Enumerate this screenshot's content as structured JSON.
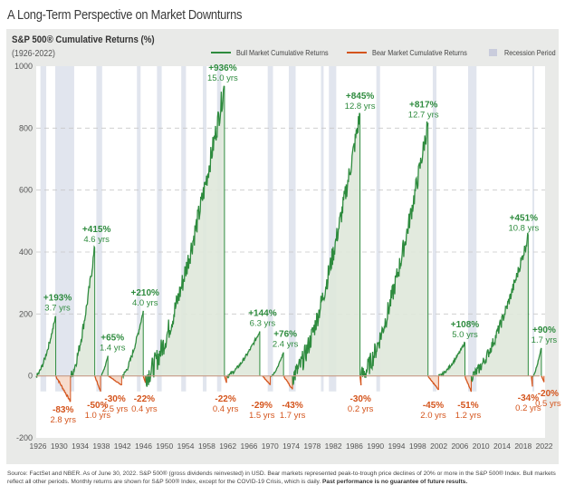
{
  "page_title": "A Long-Term Perspective on Market Downturns",
  "footer": {
    "text": "Source: FactSet and NBER.  As of June 30, 2022. S&P 500® (gross dividends reinvested) in USD. Bear markets represented peak-to-trough price declines of 20% or more in the S&P 500® Index. Bull markets reflect all other periods. Monthly returns are shown for S&P 500® Index, except for the COVID-19 Crisis, which is daily.",
    "bold": "Past performance is no guarantee of future results."
  },
  "colors": {
    "bull": "#2e8b3e",
    "bull_fill": "#dfe8da",
    "bear": "#d4541c",
    "bear_fill": "#f7dccd",
    "recession": "#e1e5ee",
    "panel": "#e9eae8"
  },
  "chart_data": {
    "type": "area",
    "title": "S&P 500® Cumulative Returns (%)",
    "subtitle": "(1926-2022)",
    "xlabel": "",
    "ylabel": "",
    "xlim": [
      1926,
      2022.5
    ],
    "ylim": [
      -200,
      1000
    ],
    "yticks": [
      "1000",
      "800",
      "600",
      "400",
      "200",
      "0",
      "-200"
    ],
    "ytick_values": [
      1000,
      800,
      600,
      400,
      200,
      0,
      -200
    ],
    "xticks": [
      "1926",
      "1930",
      "1934",
      "1938",
      "1942",
      "1946",
      "1950",
      "1954",
      "1958",
      "1962",
      "1966",
      "1970",
      "1974",
      "1978",
      "1982",
      "1986",
      "1990",
      "1994",
      "1998",
      "2002",
      "2006",
      "2010",
      "2014",
      "2018",
      "2022"
    ],
    "grid": "horizontal dashed",
    "legend": {
      "position": "top-right",
      "entries": [
        "Bull Market Cumulative Returns",
        "Bear Market Cumulative Returns",
        "Recession Period"
      ]
    },
    "recessions": [
      [
        1926.8,
        1927.9
      ],
      [
        1929.6,
        1933.2
      ],
      [
        1937.4,
        1938.5
      ],
      [
        1945.1,
        1945.8
      ],
      [
        1948.9,
        1949.8
      ],
      [
        1953.5,
        1954.4
      ],
      [
        1957.6,
        1958.3
      ],
      [
        1960.3,
        1961.1
      ],
      [
        1969.9,
        1970.9
      ],
      [
        1973.9,
        1975.2
      ],
      [
        1980.0,
        1980.5
      ],
      [
        1981.5,
        1982.9
      ],
      [
        1990.5,
        1991.2
      ],
      [
        2001.2,
        2001.9
      ],
      [
        2007.9,
        2009.5
      ],
      [
        2020.1,
        2020.4
      ]
    ],
    "bull_markets": [
      {
        "start": 1926.0,
        "end": 1929.7,
        "return": 193,
        "label": "+193%",
        "years": "3.7 yrs"
      },
      {
        "start": 1932.5,
        "end": 1937.1,
        "return": 415,
        "label": "+415%",
        "years": "4.6 yrs"
      },
      {
        "start": 1938.2,
        "end": 1939.6,
        "return": 65,
        "label": "+65%",
        "years": "1.4 yrs"
      },
      {
        "start": 1942.3,
        "end": 1946.3,
        "return": 210,
        "label": "+210%",
        "years": "4.0 yrs"
      },
      {
        "start": 1946.7,
        "end": 1961.7,
        "return": 936,
        "label": "+936%",
        "years": "15.0 yrs"
      },
      {
        "start": 1962.1,
        "end": 1968.4,
        "return": 144,
        "label": "+144%",
        "years": "6.3 yrs"
      },
      {
        "start": 1970.5,
        "end": 1972.9,
        "return": 76,
        "label": "+76%",
        "years": "2.4 yrs"
      },
      {
        "start": 1974.6,
        "end": 1987.4,
        "return": 845,
        "label": "+845%",
        "years": "12.8 yrs"
      },
      {
        "start": 1987.6,
        "end": 2000.3,
        "return": 817,
        "label": "+817%",
        "years": "12.7 yrs"
      },
      {
        "start": 2002.3,
        "end": 2007.3,
        "return": 108,
        "label": "+108%",
        "years": "5.0 yrs"
      },
      {
        "start": 2008.5,
        "end": 2019.3,
        "return": 451,
        "label": "+451%",
        "years": "10.8 yrs"
      },
      {
        "start": 2020.1,
        "end": 2021.8,
        "return": 90,
        "label": "+90%",
        "years": "1.7 yrs"
      }
    ],
    "bear_markets": [
      {
        "start": 1929.7,
        "end": 1932.5,
        "return": -83,
        "label": "-83%",
        "years": "2.8 yrs"
      },
      {
        "start": 1937.1,
        "end": 1938.2,
        "return": -50,
        "label": "-50%",
        "years": "1.0 yrs"
      },
      {
        "start": 1939.7,
        "end": 1942.2,
        "return": -30,
        "label": "-30%",
        "years": "2.5 yrs"
      },
      {
        "start": 1946.3,
        "end": 1946.7,
        "return": -22,
        "label": "-22%",
        "years": "0.4 yrs"
      },
      {
        "start": 1961.7,
        "end": 1962.1,
        "return": -22,
        "label": "-22%",
        "years": "0.4 yrs"
      },
      {
        "start": 1968.9,
        "end": 1970.4,
        "return": -29,
        "label": "-29%",
        "years": "1.5 yrs"
      },
      {
        "start": 1972.9,
        "end": 1974.6,
        "return": -43,
        "label": "-43%",
        "years": "1.7 yrs"
      },
      {
        "start": 1987.4,
        "end": 1987.6,
        "return": -30,
        "label": "-30%",
        "years": "0.2 yrs"
      },
      {
        "start": 2000.3,
        "end": 2002.3,
        "return": -45,
        "label": "-45%",
        "years": "2.0 yrs"
      },
      {
        "start": 2007.3,
        "end": 2008.5,
        "return": -51,
        "label": "-51%",
        "years": "1.2 yrs"
      },
      {
        "start": 2019.9,
        "end": 2020.1,
        "return": -34,
        "label": "-34%",
        "years": "0.2 yrs"
      },
      {
        "start": 2021.8,
        "end": 2022.3,
        "return": -20,
        "label": "-20%",
        "years": "0.5 yrs"
      }
    ]
  }
}
